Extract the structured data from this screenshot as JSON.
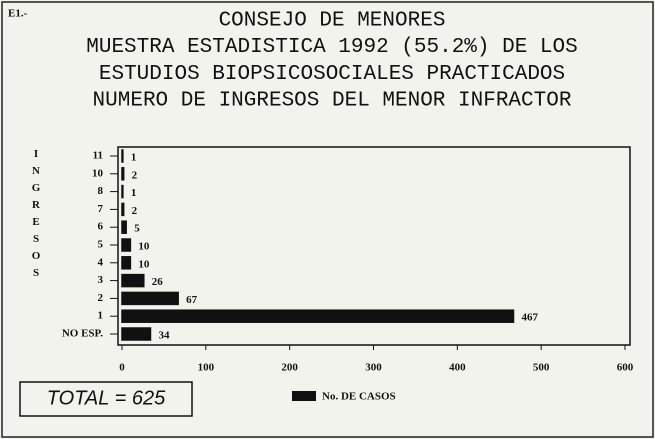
{
  "chart_data": {
    "type": "bar",
    "orientation": "horizontal",
    "corner_label": "E1.-",
    "title_lines": [
      "CONSEJO DE MENORES",
      "MUESTRA ESTADISTICA 1992 (55.2%) DE LOS",
      "ESTUDIOS BIOPSICOSOCIALES PRACTICADOS",
      "NUMERO DE INGRESOS DEL MENOR INFRACTOR"
    ],
    "y_label": "INGRESOS",
    "categories": [
      "11",
      "10",
      "8",
      "7",
      "6",
      "5",
      "4",
      "3",
      "2",
      "1",
      "NO ESP."
    ],
    "series": [
      {
        "name": "No. DE CASOS",
        "color": "#111111",
        "values": [
          1,
          2,
          1,
          2,
          5,
          10,
          10,
          26,
          67,
          467,
          34
        ]
      }
    ],
    "xlim": [
      0,
      600
    ],
    "xticks": [
      0,
      100,
      200,
      300,
      400,
      500,
      600
    ],
    "total_label": "TOTAL = 625"
  }
}
